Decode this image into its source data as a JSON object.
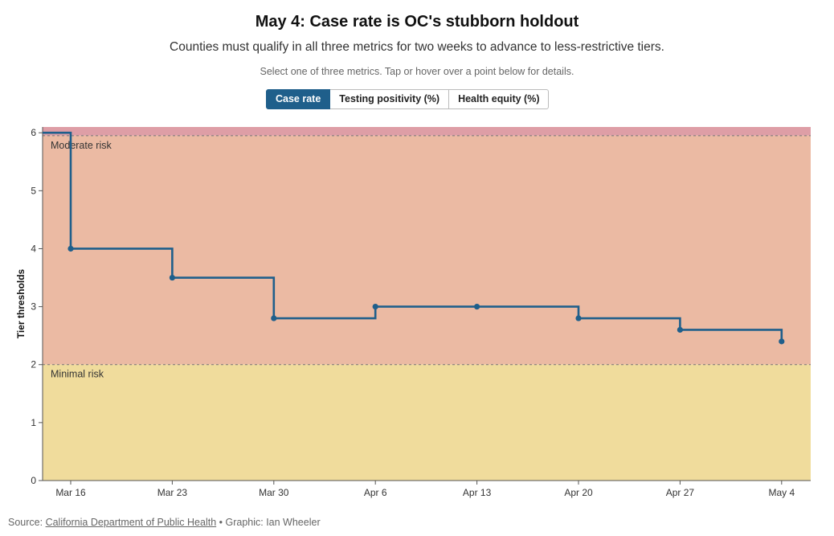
{
  "header": {
    "title": "May 4: Case rate is OC's stubborn holdout",
    "subtitle": "Counties must qualify in all three metrics for two weeks to advance to less-restrictive tiers.",
    "instructions": "Select one of three metrics. Tap or hover over a point below for details."
  },
  "tabs": [
    {
      "label": "Case rate",
      "active": true
    },
    {
      "label": "Testing positivity (%)",
      "active": false
    },
    {
      "label": "Health equity (%)",
      "active": false
    }
  ],
  "footer": {
    "source_prefix": "Source: ",
    "source_link": "California Department of Public Health",
    "credit": " • Graphic: Ian Wheeler"
  },
  "colors": {
    "line": "#1f5f8b",
    "band_top": "#de9ea6",
    "band_moderate": "#ebbaa3",
    "band_minimal": "#f0dc9c"
  },
  "chart_data": {
    "type": "line",
    "step": true,
    "title": "May 4: Case rate is OC's stubborn holdout",
    "ylabel": "Tier thresholds",
    "xlabel": "",
    "ylim": [
      0,
      6.1
    ],
    "yticks": [
      0,
      1,
      2,
      3,
      4,
      5,
      6
    ],
    "x_start": "",
    "categories": [
      "Mar 16",
      "Mar 23",
      "Mar 30",
      "Apr 6",
      "Apr 13",
      "Apr 20",
      "Apr 27",
      "May 4"
    ],
    "series": [
      {
        "values": [
          4,
          3.5,
          2.8,
          3,
          3,
          2.8,
          2.6,
          2.4
        ],
        "initial_value": 6
      }
    ],
    "bands": [
      {
        "from": 5.95,
        "to": 6.1,
        "label": ""
      },
      {
        "from": 2,
        "to": 5.95,
        "label": "Moderate risk"
      },
      {
        "from": 0,
        "to": 2,
        "label": "Minimal risk"
      }
    ],
    "grid": false
  }
}
